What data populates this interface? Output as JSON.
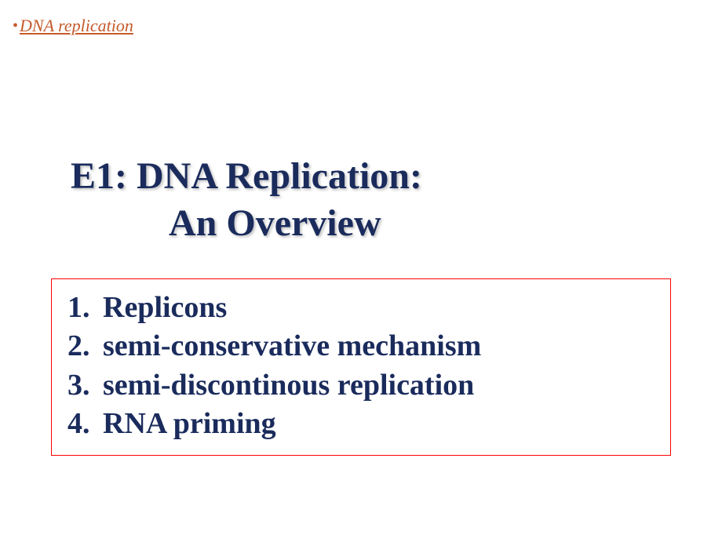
{
  "header": {
    "bullet": "•",
    "link_text": "DNA replication",
    "link_color": "#c55a2b"
  },
  "title": {
    "line1": "E1:  DNA Replication:",
    "line2": "An Overview",
    "color": "#1a2b5c",
    "font_size": 48,
    "shadow_color": "rgba(150, 150, 150, 0.6)"
  },
  "list": {
    "border_color": "#ff0000",
    "text_color": "#1a2b5c",
    "font_size": 38,
    "items": [
      {
        "number": "1.",
        "text": "Replicons"
      },
      {
        "number": "2.",
        "text": "semi-conservative  mechanism"
      },
      {
        "number": "3.",
        "text": "semi-discontinous replication"
      },
      {
        "number": "4.",
        "text": "RNA priming"
      }
    ]
  },
  "background_color": "#ffffff"
}
